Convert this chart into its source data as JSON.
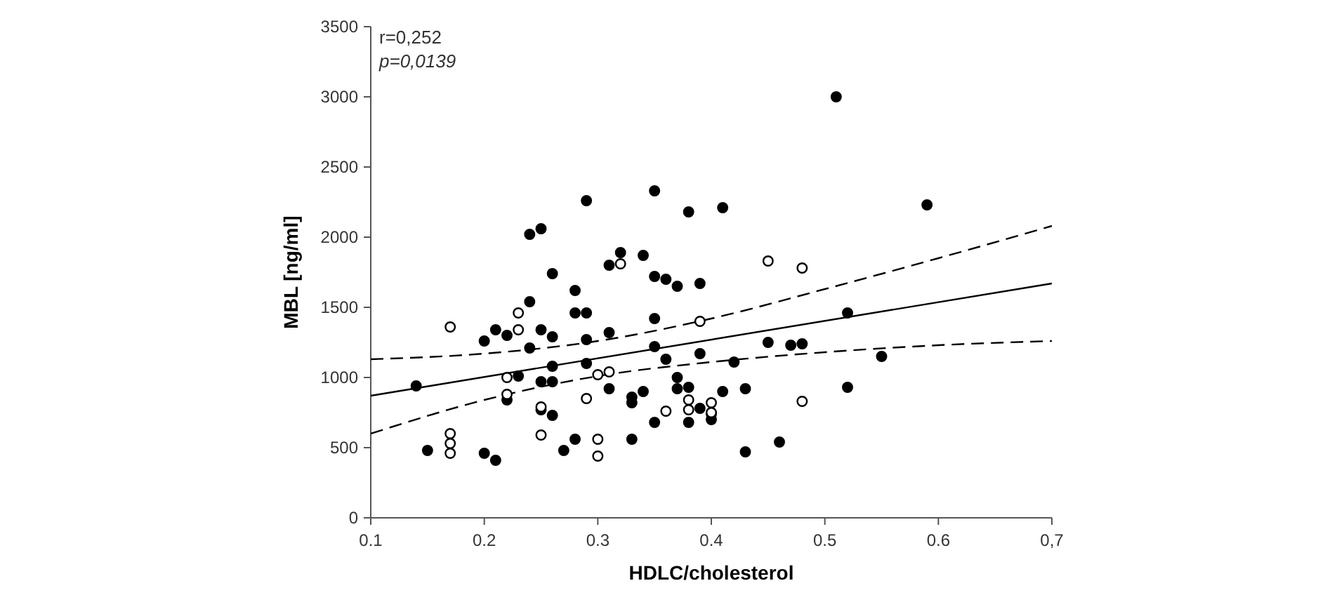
{
  "chart_data": {
    "type": "scatter",
    "xlabel": "HDLC/cholesterol",
    "ylabel": "MBL [ng/ml]",
    "annotations": [
      "r=0,252",
      "p=0,0139"
    ],
    "xlim": [
      0.1,
      0.7
    ],
    "xticks": [
      0.1,
      0.2,
      0.3,
      0.4,
      0.5,
      0.6,
      {
        "value": 0.7,
        "label": "0,7"
      }
    ],
    "ylim": [
      0,
      3500
    ],
    "yticks": [
      0,
      500,
      1000,
      1500,
      2000,
      2500,
      3000,
      3500
    ],
    "grid": false,
    "marker": "circle",
    "series": [
      {
        "color": "#000000",
        "x": [
          0.14,
          0.15,
          0.2,
          0.21,
          0.2,
          0.21,
          0.22,
          0.22,
          0.23,
          0.24,
          0.24,
          0.24,
          0.25,
          0.25,
          0.25,
          0.25,
          0.26,
          0.26,
          0.26,
          0.26,
          0.26,
          0.27,
          0.28,
          0.28,
          0.28,
          0.29,
          0.29,
          0.29,
          0.29,
          0.31,
          0.31,
          0.31,
          0.32,
          0.33,
          0.33,
          0.33,
          0.34,
          0.34,
          0.35,
          0.35,
          0.35,
          0.35,
          0.35,
          0.36,
          0.36,
          0.37,
          0.37,
          0.37,
          0.38,
          0.38,
          0.38,
          0.39,
          0.39,
          0.39,
          0.4,
          0.4,
          0.41,
          0.41,
          0.42,
          0.43,
          0.43,
          0.45,
          0.46,
          0.47,
          0.48,
          0.51,
          0.52,
          0.52,
          0.55,
          0.59
        ],
        "values": [
          940,
          480,
          460,
          410,
          1260,
          1340,
          1300,
          840,
          1010,
          1210,
          1540,
          2020,
          2060,
          1340,
          970,
          770,
          1290,
          1740,
          1080,
          970,
          730,
          480,
          1620,
          1460,
          560,
          2260,
          1460,
          1270,
          1100,
          1800,
          1320,
          920,
          1890,
          860,
          820,
          560,
          1870,
          900,
          2330,
          1720,
          1420,
          1220,
          680,
          1700,
          1130,
          1650,
          1000,
          920,
          2180,
          930,
          680,
          1670,
          1170,
          780,
          700,
          740,
          2210,
          900,
          1110,
          920,
          470,
          1250,
          540,
          1230,
          1240,
          3000,
          1460,
          930,
          1150,
          2230
        ]
      },
      {
        "color": "#ffffff",
        "x": [
          0.17,
          0.17,
          0.17,
          0.17,
          0.22,
          0.22,
          0.23,
          0.23,
          0.25,
          0.25,
          0.29,
          0.3,
          0.3,
          0.3,
          0.31,
          0.32,
          0.36,
          0.38,
          0.38,
          0.39,
          0.4,
          0.4,
          0.45,
          0.48,
          0.48
        ],
        "values": [
          1360,
          600,
          530,
          460,
          1000,
          880,
          1460,
          1340,
          790,
          590,
          850,
          1020,
          560,
          440,
          1040,
          1810,
          760,
          840,
          770,
          1400,
          820,
          750,
          1830,
          1780,
          830
        ]
      },
      {
        "type": "line",
        "color": "#000000",
        "line_style": "solid",
        "marker": "none",
        "x": [
          0.1,
          0.7
        ],
        "values": [
          870,
          1670
        ]
      },
      {
        "type": "line",
        "color": "#000000",
        "line_style": "dashed",
        "marker": "none",
        "x": [
          0.1,
          0.2,
          0.3,
          0.4,
          0.5,
          0.6,
          0.7
        ],
        "values": [
          1130,
          1170,
          1260,
          1420,
          1630,
          1850,
          2080
        ]
      },
      {
        "type": "line",
        "color": "#000000",
        "line_style": "dashed",
        "marker": "none",
        "x": [
          0.1,
          0.2,
          0.3,
          0.4,
          0.5,
          0.6,
          0.7
        ],
        "values": [
          600,
          840,
          1010,
          1110,
          1180,
          1230,
          1260
        ]
      }
    ]
  }
}
